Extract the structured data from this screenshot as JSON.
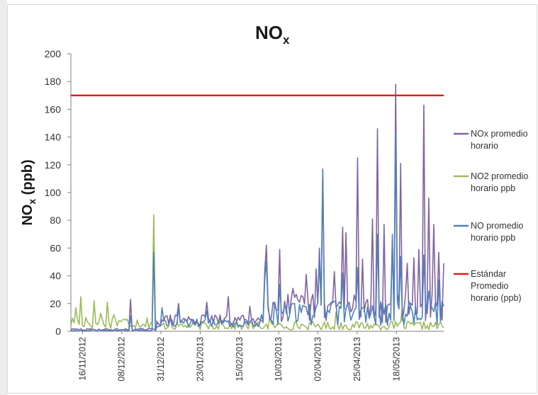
{
  "chart_data": {
    "type": "line",
    "title": "NO",
    "title_subscript": "x",
    "ylabel": "NO",
    "ylabel_subscript": "x",
    "ylabel_unit": "(ppb)",
    "xlabel": "",
    "ylim": [
      0,
      200
    ],
    "yticks": [
      0,
      20,
      40,
      60,
      80,
      100,
      120,
      140,
      160,
      180,
      200
    ],
    "x_tick_labels": [
      "16/11/2012",
      "08/12/2012",
      "31/12/2012",
      "23/01/2013",
      "15/02/2013",
      "10/03/2013",
      "02/04/2013",
      "25/04/2013",
      "18/05/2013"
    ],
    "grid": false,
    "legend_position": "right",
    "series": [
      {
        "name": "NOx promedio horario",
        "color": "#8064a2",
        "peaks": [
          {
            "x": 36,
            "y": 23
          },
          {
            "x": 65,
            "y": 20
          },
          {
            "x": 82,
            "y": 21
          },
          {
            "x": 95,
            "y": 25
          },
          {
            "x": 108,
            "y": 18
          },
          {
            "x": 117,
            "y": 44
          },
          {
            "x": 118,
            "y": 62
          },
          {
            "x": 126,
            "y": 59
          },
          {
            "x": 134,
            "y": 31
          },
          {
            "x": 142,
            "y": 41
          },
          {
            "x": 148,
            "y": 45
          },
          {
            "x": 150,
            "y": 60
          },
          {
            "x": 152,
            "y": 117
          },
          {
            "x": 159,
            "y": 43
          },
          {
            "x": 164,
            "y": 75
          },
          {
            "x": 166,
            "y": 71
          },
          {
            "x": 173,
            "y": 125
          },
          {
            "x": 176,
            "y": 52
          },
          {
            "x": 182,
            "y": 81
          },
          {
            "x": 185,
            "y": 146
          },
          {
            "x": 189,
            "y": 77
          },
          {
            "x": 194,
            "y": 64
          },
          {
            "x": 196,
            "y": 178
          },
          {
            "x": 199,
            "y": 121
          },
          {
            "x": 203,
            "y": 49
          },
          {
            "x": 207,
            "y": 53
          },
          {
            "x": 210,
            "y": 59
          },
          {
            "x": 213,
            "y": 163
          },
          {
            "x": 216,
            "y": 96
          },
          {
            "x": 219,
            "y": 77
          },
          {
            "x": 222,
            "y": 57
          },
          {
            "x": 225,
            "y": 49
          }
        ]
      },
      {
        "name": "NO2 promedio horario ppb",
        "color": "#9bbb59",
        "peaks": [
          {
            "x": 1,
            "y": 5
          },
          {
            "x": 3,
            "y": 17
          },
          {
            "x": 6,
            "y": 25
          },
          {
            "x": 9,
            "y": 10
          },
          {
            "x": 14,
            "y": 22
          },
          {
            "x": 18,
            "y": 13
          },
          {
            "x": 22,
            "y": 21
          },
          {
            "x": 26,
            "y": 12
          },
          {
            "x": 30,
            "y": 7
          },
          {
            "x": 40,
            "y": 8
          },
          {
            "x": 50,
            "y": 84
          },
          {
            "x": 60,
            "y": 12
          },
          {
            "x": 90,
            "y": 8
          },
          {
            "x": 120,
            "y": 10
          },
          {
            "x": 160,
            "y": 14
          },
          {
            "x": 200,
            "y": 18
          }
        ]
      },
      {
        "name": "NO promedio horario ppb",
        "color": "#4f81bd",
        "peaks": [
          {
            "x": 36,
            "y": 11
          },
          {
            "x": 50,
            "y": 57
          },
          {
            "x": 55,
            "y": 17
          },
          {
            "x": 65,
            "y": 17
          },
          {
            "x": 82,
            "y": 15
          },
          {
            "x": 117,
            "y": 37
          },
          {
            "x": 118,
            "y": 51
          },
          {
            "x": 126,
            "y": 34
          },
          {
            "x": 150,
            "y": 50
          },
          {
            "x": 152,
            "y": 115
          },
          {
            "x": 164,
            "y": 42
          },
          {
            "x": 173,
            "y": 46
          },
          {
            "x": 185,
            "y": 70
          },
          {
            "x": 194,
            "y": 70
          },
          {
            "x": 196,
            "y": 143
          },
          {
            "x": 199,
            "y": 54
          },
          {
            "x": 213,
            "y": 55
          },
          {
            "x": 216,
            "y": 29
          },
          {
            "x": 222,
            "y": 37
          }
        ]
      },
      {
        "name": "Estándar Promedio horario (ppb)",
        "color": "#e31a1c",
        "constant": 170
      }
    ],
    "legend": [
      {
        "lines": [
          "NOx promedio",
          "horario"
        ],
        "color": "#8064a2"
      },
      {
        "lines": [
          "NO2 promedio",
          "horario ppb"
        ],
        "color": "#9bbb59"
      },
      {
        "lines": [
          "NO promedio",
          "horario ppb"
        ],
        "color": "#4f81bd"
      },
      {
        "lines": [
          "Estándar",
          "Promedio",
          "horario (ppb)"
        ],
        "color": "#e31a1c"
      }
    ]
  }
}
